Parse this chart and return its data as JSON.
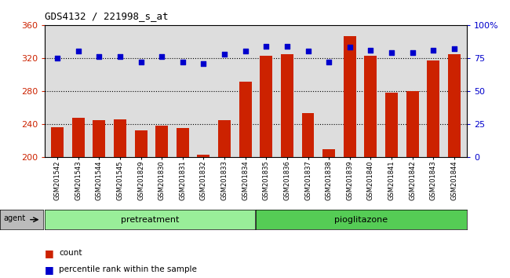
{
  "title": "GDS4132 / 221998_s_at",
  "categories": [
    "GSM201542",
    "GSM201543",
    "GSM201544",
    "GSM201545",
    "GSM201829",
    "GSM201830",
    "GSM201831",
    "GSM201832",
    "GSM201833",
    "GSM201834",
    "GSM201835",
    "GSM201836",
    "GSM201837",
    "GSM201838",
    "GSM201839",
    "GSM201840",
    "GSM201841",
    "GSM201842",
    "GSM201843",
    "GSM201844"
  ],
  "counts": [
    236,
    248,
    245,
    246,
    232,
    238,
    235,
    203,
    245,
    291,
    323,
    325,
    253,
    210,
    347,
    323,
    278,
    280,
    317,
    325
  ],
  "percentiles": [
    75,
    80,
    76,
    76,
    72,
    76,
    72,
    71,
    78,
    80,
    84,
    84,
    80,
    72,
    83,
    81,
    79,
    79,
    81,
    82
  ],
  "pretreatment_count": 10,
  "pioglitazone_count": 10,
  "ylim_left": [
    200,
    360
  ],
  "ylim_right": [
    0,
    100
  ],
  "yticks_left": [
    200,
    240,
    280,
    320,
    360
  ],
  "yticks_right": [
    0,
    25,
    50,
    75,
    100
  ],
  "ytick_labels_right": [
    "0",
    "25",
    "50",
    "75",
    "100%"
  ],
  "bar_color": "#cc2200",
  "dot_color": "#0000cc",
  "pretreat_color": "#99ee99",
  "pioglit_color": "#55cc55",
  "agent_header_color": "#bbbbbb",
  "bg_color": "#dddddd",
  "grid_color": "#000000",
  "title_color": "#000000",
  "left_tick_color": "#cc2200",
  "right_tick_color": "#0000cc"
}
